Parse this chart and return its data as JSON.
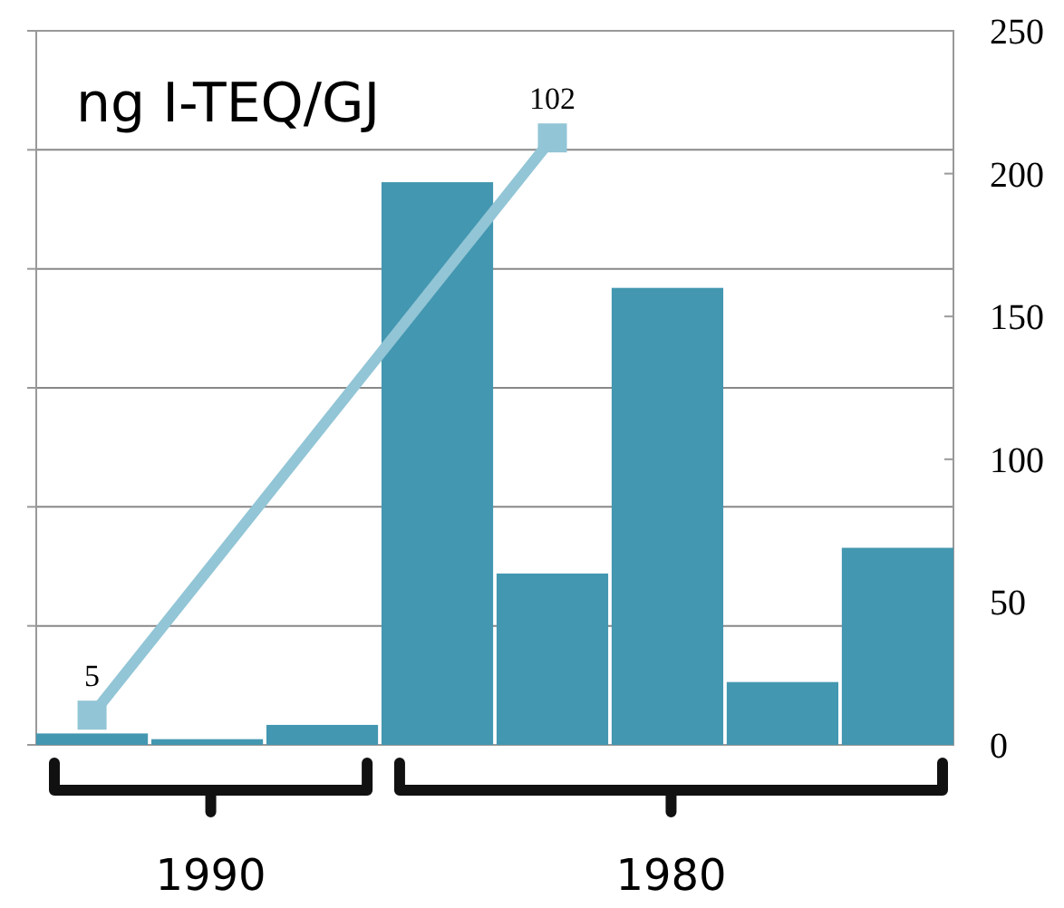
{
  "chart_data": {
    "type": "bar",
    "title": "ng I-TEQ/GJ",
    "categories": [
      null,
      null,
      null,
      null,
      null,
      null,
      null,
      null
    ],
    "series": [
      {
        "axis": "y2",
        "color": "#4397b0",
        "values": [
          4,
          2,
          7,
          197,
          60,
          160,
          22,
          69
        ]
      },
      {
        "type": "line",
        "axis": "y",
        "color": "#92c5d6",
        "marker": "square",
        "values": [
          5,
          null,
          null,
          null,
          102,
          null,
          null,
          null
        ],
        "value_labels": [
          "5",
          null,
          null,
          null,
          "102",
          null,
          null,
          null
        ]
      }
    ],
    "ylim": [
      0,
      120
    ],
    "yticks": [
      {
        "value": 0,
        "label": null
      },
      {
        "value": 20,
        "label": null
      },
      {
        "value": 40,
        "label": null
      },
      {
        "value": 60,
        "label": null
      },
      {
        "value": 80,
        "label": null
      },
      {
        "value": 100,
        "label": null
      },
      {
        "value": 120,
        "label": null
      }
    ],
    "y2lim": [
      0,
      250
    ],
    "y2ticks": [
      0,
      50,
      100,
      150,
      200,
      250
    ],
    "grid": "y",
    "annotations": [
      "1990",
      "1980"
    ]
  }
}
